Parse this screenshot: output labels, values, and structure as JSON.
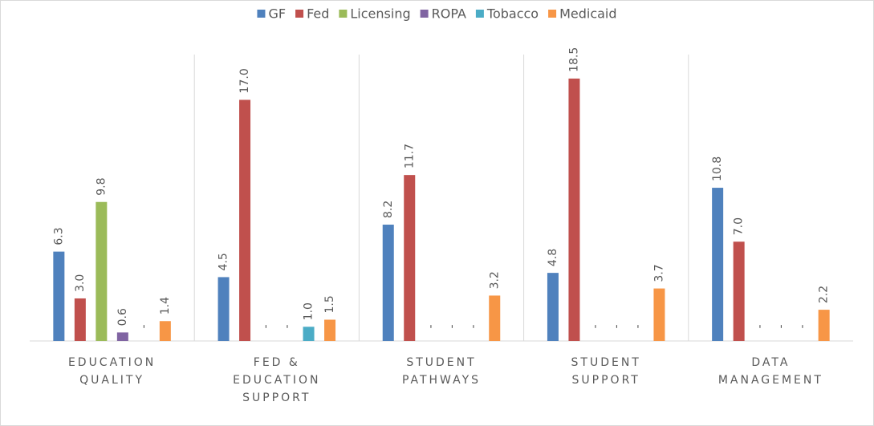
{
  "chart_data": {
    "type": "bar",
    "categories": [
      "EDUCATION QUALITY",
      "FED & EDUCATION SUPPORT",
      "STUDENT PATHWAYS",
      "STUDENT SUPPORT",
      "DATA MANAGEMENT"
    ],
    "series": [
      {
        "name": "GF",
        "color": "#4f81bd",
        "values": [
          6.3,
          4.5,
          8.2,
          4.8,
          10.8
        ],
        "value_labels": [
          "6.3",
          "4.5",
          "8.2",
          "4.8",
          "10.8"
        ]
      },
      {
        "name": "Fed",
        "color": "#c0504d",
        "values": [
          3.0,
          17.0,
          11.7,
          18.5,
          7.0
        ],
        "value_labels": [
          "3.0",
          "17.0",
          "11.7",
          "18.5",
          "7.0"
        ]
      },
      {
        "name": "Licensing",
        "color": "#9bbb59",
        "values": [
          9.8,
          0,
          0,
          0,
          0
        ],
        "value_labels": [
          "9.8",
          "-",
          "-",
          "-",
          "-"
        ]
      },
      {
        "name": "ROPA",
        "color": "#8064a2",
        "values": [
          0.6,
          0,
          0,
          0,
          0
        ],
        "value_labels": [
          "0.6",
          "-",
          "-",
          "-",
          "-"
        ]
      },
      {
        "name": "Tobacco",
        "color": "#4bacc6",
        "values": [
          0,
          1.0,
          0,
          0,
          0
        ],
        "value_labels": [
          "-",
          "1.0",
          "-",
          "-",
          "-"
        ]
      },
      {
        "name": "Medicaid",
        "color": "#f79646",
        "values": [
          1.4,
          1.5,
          3.2,
          3.7,
          2.2
        ],
        "value_labels": [
          "1.4",
          "1.5",
          "3.2",
          "3.7",
          "2.2"
        ]
      }
    ],
    "legend": "top"
  }
}
